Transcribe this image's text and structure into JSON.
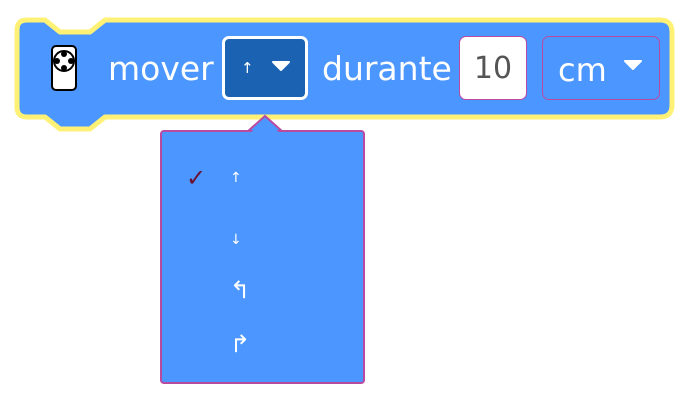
{
  "block": {
    "icon": "robot-icon",
    "label_move": "mover",
    "label_during": "durante",
    "direction": {
      "selected_icon": "arrow-up-icon",
      "selected_glyph": "↑",
      "caret": "▾"
    },
    "distance": {
      "value": "10"
    },
    "unit": {
      "label": "cm",
      "caret": "▾"
    }
  },
  "menu": {
    "check": "✓",
    "items": [
      {
        "icon": "arrow-up-icon",
        "glyph": "↑",
        "selected": true
      },
      {
        "icon": "arrow-down-icon",
        "glyph": "↓",
        "selected": false
      },
      {
        "icon": "turn-left-icon",
        "glyph": "↰",
        "selected": false
      },
      {
        "icon": "turn-right-icon",
        "glyph": "↱",
        "selected": false
      }
    ]
  },
  "colors": {
    "block_fill": "#4c97ff",
    "block_highlight": "#fff176",
    "dropdown_selected": "#1b62b3",
    "border_accent": "#b84aa0",
    "check": "#6b1234"
  }
}
